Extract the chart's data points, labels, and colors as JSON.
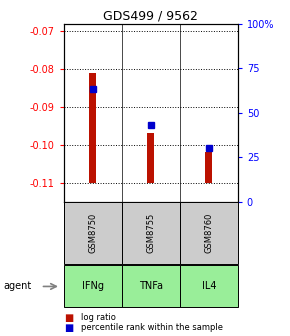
{
  "title": "GDS499 / 9562",
  "categories": [
    "IFNg",
    "TNFa",
    "IL4"
  ],
  "gsm_labels": [
    "GSM8750",
    "GSM8755",
    "GSM8760"
  ],
  "log_ratio_values": [
    -0.081,
    -0.097,
    -0.102
  ],
  "percentile_values": [
    63,
    43,
    30
  ],
  "bar_bottom": -0.11,
  "ylim_left": [
    -0.115,
    -0.068
  ],
  "ylim_right": [
    0,
    100
  ],
  "yticks_left": [
    -0.11,
    -0.1,
    -0.09,
    -0.08,
    -0.07
  ],
  "ytick_labels_left": [
    "-0.11",
    "-0.10",
    "-0.09",
    "-0.08",
    "-0.07"
  ],
  "yticks_right": [
    0,
    25,
    50,
    75,
    100
  ],
  "ytick_labels_right": [
    "0",
    "25",
    "50",
    "75",
    "100%"
  ],
  "bar_color": "#bb1100",
  "dot_color": "#0000cc",
  "agent_label": "agent",
  "category_bg_color": "#99ee99",
  "gsm_bg_color": "#cccccc",
  "legend_log_label": "log ratio",
  "legend_pct_label": "percentile rank within the sample",
  "plot_bg_color": "#ffffff",
  "outer_bg_color": "#ffffff",
  "bar_width": 0.12
}
